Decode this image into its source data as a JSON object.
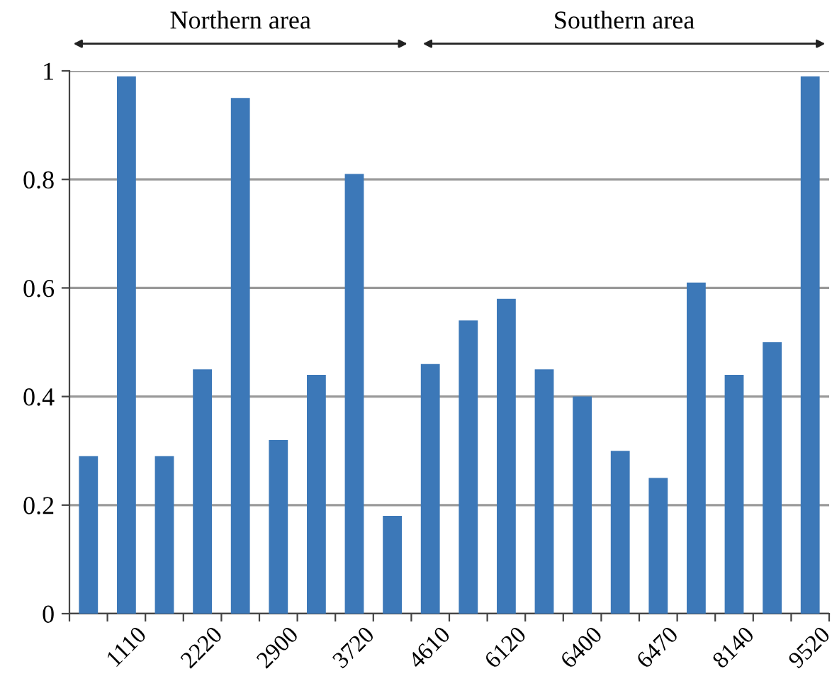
{
  "chart_data": {
    "type": "bar",
    "categories": [
      null,
      "1110",
      null,
      "2220",
      null,
      "2900",
      null,
      "3720",
      null,
      "4610",
      null,
      "6120",
      null,
      "6400",
      null,
      "6470",
      null,
      "8140",
      null,
      "9520"
    ],
    "values": [
      0.29,
      0.99,
      0.29,
      0.45,
      0.95,
      0.32,
      0.44,
      0.81,
      0.18,
      0.46,
      0.54,
      0.58,
      0.45,
      0.4,
      0.3,
      0.25,
      0.61,
      0.44,
      0.5,
      0.99
    ],
    "color": "#3c78b8",
    "ylim": [
      0,
      1
    ],
    "yticks": [
      0,
      0.2,
      0.4,
      0.6,
      0.8,
      1
    ],
    "grid": "y",
    "annotations": [
      "Northern area",
      "Southern area"
    ]
  }
}
